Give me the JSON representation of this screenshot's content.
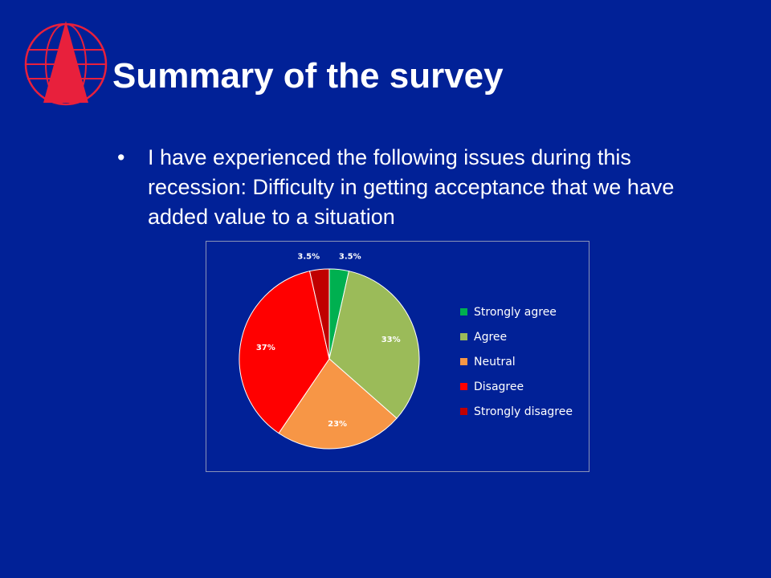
{
  "slide": {
    "title": "Summary of the survey",
    "bullet": "I have experienced the following issues during this recession: Difficulty in getting acceptance that we have added value to a situation",
    "background_color": "#012197",
    "logo_icon": "globe-triangle-logo"
  },
  "chart_data": {
    "type": "pie",
    "categories": [
      "Strongly agree",
      "Agree",
      "Neutral",
      "Disagree",
      "Strongly disagree"
    ],
    "values": [
      3.5,
      33,
      23,
      37,
      3.5
    ],
    "data_labels": [
      "3.5%",
      "33%",
      "23%",
      "37%",
      "3.5%"
    ],
    "colors": [
      "#00B050",
      "#9BBB59",
      "#F79646",
      "#FF0000",
      "#C00000"
    ],
    "legend": {
      "position": "right",
      "entries": [
        "Strongly agree",
        "Agree",
        "Neutral",
        "Disagree",
        "Strongly disagree"
      ]
    }
  }
}
